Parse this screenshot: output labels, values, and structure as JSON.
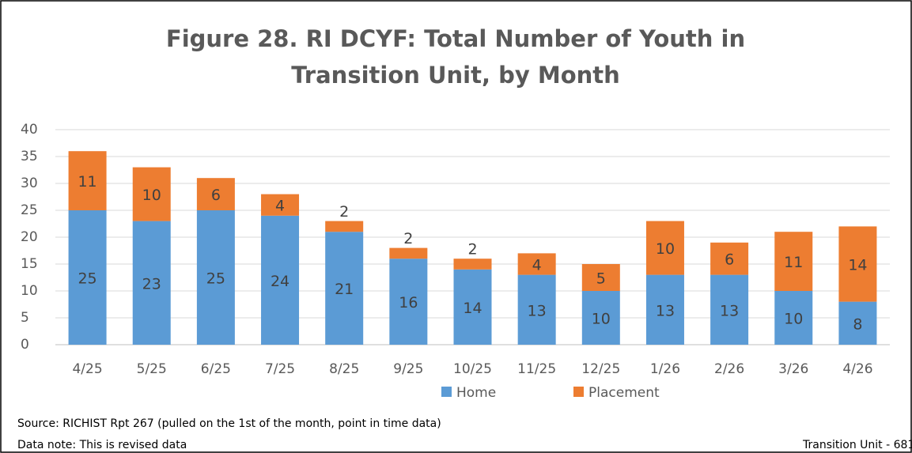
{
  "chart_data": {
    "type": "stacked_bar",
    "title": [
      "Figure 28. RI DCYF: Total Number of Youth in",
      "Transition Unit, by Month"
    ],
    "categories": [
      "4/25",
      "5/25",
      "6/25",
      "7/25",
      "8/25",
      "9/25",
      "10/25",
      "11/25",
      "12/25",
      "1/26",
      "2/26",
      "3/26",
      "4/26"
    ],
    "series": [
      {
        "name": "Home",
        "color": "#5b9bd5",
        "values": [
          25,
          23,
          25,
          24,
          21,
          16,
          14,
          13,
          10,
          13,
          13,
          10,
          8
        ]
      },
      {
        "name": "Placement",
        "color": "#ed7d31",
        "values": [
          11,
          10,
          6,
          4,
          2,
          2,
          2,
          4,
          5,
          10,
          6,
          11,
          14
        ]
      }
    ],
    "ylim": [
      0,
      40
    ],
    "yticks": [
      0,
      5,
      10,
      15,
      20,
      25,
      30,
      35,
      40
    ],
    "grid": true,
    "legend": "bottom",
    "notes": [
      "Source: RICHIST Rpt 267 (pulled on the 1st of the month, point in time data)",
      "Data note: This is revised data"
    ],
    "footer_right": "Transition Unit - 681"
  }
}
